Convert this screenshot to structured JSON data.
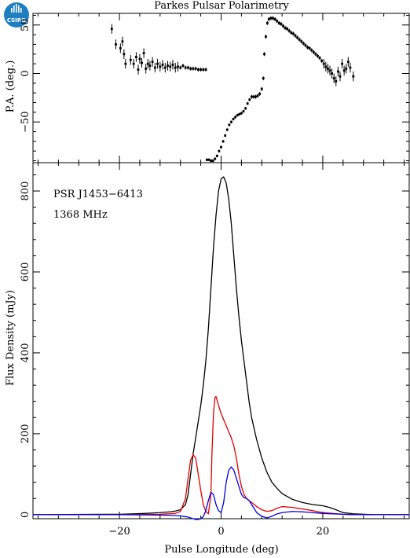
{
  "title": "Parkes Pulsar Polarimetry",
  "logo": {
    "text": "CSIRO",
    "color": "#1e7fc0"
  },
  "colors": {
    "total": "#000000",
    "linear": "#e00000",
    "circular": "#0000e0"
  },
  "chart_data": [
    {
      "type": "scatter",
      "ylabel": "P.A. (deg.)",
      "xlim": [
        -37,
        37
      ],
      "ylim": [
        -92,
        62
      ],
      "yticks": [
        -50,
        0,
        50
      ],
      "xticks": [
        -20,
        0,
        20
      ],
      "grid": false,
      "series": [
        {
          "points": [
            [
              -21.5,
              46
            ],
            [
              -20.7,
              30
            ],
            [
              -19.8,
              26
            ],
            [
              -19.4,
              33
            ],
            [
              -19.1,
              20
            ],
            [
              -18.8,
              10
            ],
            [
              -17.8,
              14
            ],
            [
              -17.2,
              10
            ],
            [
              -16.7,
              17
            ],
            [
              -16.3,
              4
            ],
            [
              -16.0,
              15
            ],
            [
              -15.6,
              11
            ],
            [
              -15.2,
              21
            ],
            [
              -14.8,
              5
            ],
            [
              -14.4,
              10
            ],
            [
              -14.0,
              8
            ],
            [
              -13.5,
              12
            ],
            [
              -13.0,
              6
            ],
            [
              -12.5,
              10
            ],
            [
              -12.0,
              7
            ],
            [
              -11.5,
              9
            ],
            [
              -11.0,
              6
            ],
            [
              -10.5,
              8
            ],
            [
              -10.0,
              7
            ],
            [
              -9.5,
              9
            ],
            [
              -9.0,
              6
            ],
            [
              -8.5,
              7
            ],
            [
              -8.0,
              6
            ],
            [
              -7.5,
              8
            ],
            [
              -7.0,
              6
            ],
            [
              -6.5,
              6
            ],
            [
              -6.0,
              5
            ],
            [
              -5.5,
              5
            ],
            [
              -5.0,
              5
            ],
            [
              -4.5,
              4
            ],
            [
              -4.0,
              4
            ],
            [
              -3.5,
              4
            ],
            [
              -3.0,
              4
            ],
            [
              -2.8,
              -89
            ],
            [
              -2.4,
              -89
            ],
            [
              -2.0,
              -90
            ],
            [
              -1.6,
              -90
            ],
            [
              -1.2,
              -88
            ],
            [
              -0.8,
              -85
            ],
            [
              -0.4,
              -80
            ],
            [
              0.0,
              -76
            ],
            [
              0.4,
              -70
            ],
            [
              0.8,
              -64
            ],
            [
              1.2,
              -58
            ],
            [
              1.6,
              -53
            ],
            [
              2.0,
              -50
            ],
            [
              2.4,
              -47
            ],
            [
              2.8,
              -45
            ],
            [
              3.2,
              -43
            ],
            [
              3.6,
              -42
            ],
            [
              4.0,
              -41
            ],
            [
              4.4,
              -39
            ],
            [
              4.8,
              -36
            ],
            [
              5.2,
              -31
            ],
            [
              5.6,
              -27
            ],
            [
              6.0,
              -24
            ],
            [
              6.4,
              -24
            ],
            [
              6.8,
              -24
            ],
            [
              7.2,
              -23
            ],
            [
              7.6,
              -21
            ],
            [
              8.0,
              -16
            ],
            [
              8.3,
              -5
            ],
            [
              8.5,
              20
            ],
            [
              8.8,
              38
            ],
            [
              9.1,
              52
            ],
            [
              9.4,
              56
            ],
            [
              9.8,
              57
            ],
            [
              10.2,
              57
            ],
            [
              10.6,
              56
            ],
            [
              11.0,
              54
            ],
            [
              11.4,
              52
            ],
            [
              11.8,
              51
            ],
            [
              12.2,
              49
            ],
            [
              12.6,
              47
            ],
            [
              13.0,
              46
            ],
            [
              13.4,
              44
            ],
            [
              13.8,
              42
            ],
            [
              14.2,
              41
            ],
            [
              14.6,
              39
            ],
            [
              15.0,
              37
            ],
            [
              15.4,
              35
            ],
            [
              15.8,
              33
            ],
            [
              16.2,
              31
            ],
            [
              16.6,
              29
            ],
            [
              17.0,
              27
            ],
            [
              17.4,
              26
            ],
            [
              17.8,
              24
            ],
            [
              18.2,
              22
            ],
            [
              18.6,
              20
            ],
            [
              19.0,
              18
            ],
            [
              19.4,
              16
            ],
            [
              19.8,
              13
            ],
            [
              20.2,
              10
            ],
            [
              20.6,
              7
            ],
            [
              21.0,
              5
            ],
            [
              21.4,
              3
            ],
            [
              21.8,
              0
            ],
            [
              22.2,
              -5
            ],
            [
              22.6,
              -8
            ],
            [
              23.0,
              2
            ],
            [
              23.4,
              -3
            ],
            [
              23.8,
              10
            ],
            [
              24.2,
              3
            ],
            [
              24.6,
              5
            ],
            [
              25.0,
              12
            ],
            [
              25.4,
              6
            ],
            [
              26.0,
              -3
            ]
          ]
        }
      ]
    },
    {
      "type": "line",
      "xlabel": "Pulse Longitude (deg)",
      "ylabel": "Flux Density (mJy)",
      "xlim": [
        -37,
        37
      ],
      "ylim": [
        -10,
        870
      ],
      "yticks": [
        0,
        200,
        400,
        600,
        800
      ],
      "xticks": [
        -20,
        0,
        20
      ],
      "grid": false,
      "annotations": [
        "PSR J1453−6413",
        "1368 MHz"
      ],
      "series": [
        {
          "color": "#000000",
          "x": [
            -37,
            -20,
            -15,
            -12,
            -10,
            -9,
            -8,
            -7,
            -6.5,
            -6,
            -5.5,
            -5,
            -4.5,
            -4,
            -3.5,
            -3,
            -2.5,
            -2,
            -1.5,
            -1,
            -0.5,
            0,
            0.5,
            1,
            1.5,
            2,
            2.5,
            3,
            3.5,
            4,
            4.5,
            5,
            5.5,
            6,
            7,
            8,
            9,
            10,
            11,
            12,
            14,
            16,
            18,
            20,
            21,
            22,
            23,
            24,
            26,
            30,
            37
          ],
          "values": [
            0,
            1,
            3,
            5,
            7,
            9,
            12,
            25,
            50,
            100,
            150,
            190,
            230,
            270,
            320,
            380,
            460,
            560,
            660,
            740,
            800,
            830,
            835,
            820,
            780,
            720,
            640,
            560,
            490,
            430,
            380,
            330,
            280,
            240,
            185,
            140,
            105,
            80,
            65,
            52,
            38,
            30,
            25,
            22,
            19,
            15,
            10,
            5,
            2,
            0,
            0
          ]
        },
        {
          "color": "#e00000",
          "x": [
            -37,
            -20,
            -12,
            -9,
            -8,
            -7,
            -6.5,
            -6,
            -5.5,
            -5,
            -4.5,
            -4,
            -3.5,
            -3,
            -2.5,
            -2,
            -1.8,
            -1.5,
            -1.2,
            -1,
            -0.5,
            0,
            0.5,
            1,
            1.5,
            2,
            2.5,
            3,
            3.5,
            4,
            4.5,
            5,
            5.5,
            6,
            7,
            8,
            9,
            10,
            11,
            12,
            14,
            16,
            18,
            20,
            22,
            24,
            26,
            37
          ],
          "values": [
            0,
            0,
            1,
            3,
            8,
            40,
            90,
            135,
            148,
            140,
            100,
            60,
            25,
            8,
            2,
            50,
            150,
            250,
            290,
            292,
            270,
            250,
            235,
            220,
            205,
            190,
            170,
            140,
            100,
            70,
            50,
            40,
            35,
            30,
            20,
            12,
            8,
            10,
            16,
            20,
            18,
            14,
            10,
            5,
            3,
            1,
            0,
            0
          ]
        },
        {
          "color": "#0000e0",
          "x": [
            -37,
            -20,
            -12,
            -9,
            -8,
            -7,
            -6.5,
            -6,
            -5.5,
            -5,
            -4.5,
            -4,
            -3.5,
            -3,
            -2.5,
            -2,
            -1.5,
            -1,
            -0.5,
            0,
            0.5,
            1,
            1.5,
            2,
            2.5,
            3,
            3.5,
            4,
            4.5,
            5,
            5.5,
            6,
            6.5,
            7,
            8,
            9,
            10,
            11,
            12,
            14,
            16,
            18,
            20,
            22,
            24,
            26,
            37
          ],
          "values": [
            0,
            0,
            -1,
            -2,
            -3,
            -5,
            -6,
            -8,
            -10,
            -12,
            -12,
            -10,
            -5,
            10,
            35,
            55,
            50,
            25,
            10,
            5,
            30,
            80,
            110,
            118,
            110,
            90,
            70,
            50,
            42,
            40,
            35,
            25,
            15,
            5,
            -4,
            -8,
            -4,
            2,
            5,
            8,
            7,
            5,
            3,
            2,
            1,
            0,
            0
          ]
        }
      ]
    }
  ]
}
